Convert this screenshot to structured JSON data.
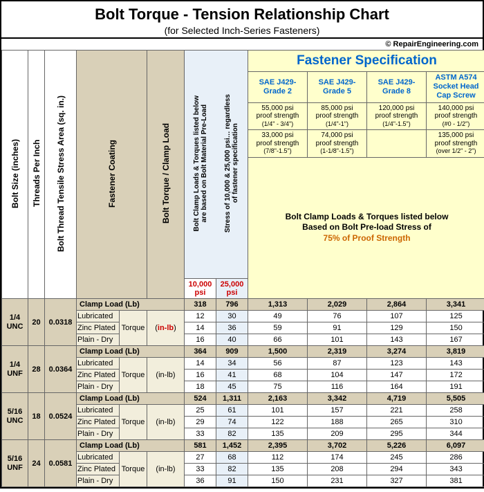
{
  "title": "Bolt Torque - Tension Relationship Chart",
  "subtitle": "(for Selected Inch-Series Fasteners)",
  "credit": "© RepairEngineering.com",
  "headers": {
    "bolt_size": "Bolt Size (inches)",
    "tpi": "Threads Per Inch",
    "area": "Bolt Thread Tensile Stress Area (sq. in.)",
    "coating": "Fastener Coating",
    "torque_clamp": "Bolt Torque / Clamp Load",
    "note_l1": "Bolt Clamp Loads & Torques listed below",
    "note_l2": "are based on Bolt Material Pre-Load",
    "note_l3": "Stress of 10,000 & 25,000 psi… regardless",
    "note_l4": "of fastener specification",
    "psi_10k": "10,000 psi",
    "psi_25k": "25,000 psi"
  },
  "spec": {
    "title": "Fastener Specification",
    "grades": [
      "SAE J429- Grade 2",
      "SAE J429- Grade 5",
      "SAE J429- Grade 8",
      "ASTM A574 Socket Head Cap Screw"
    ],
    "proof_row1": [
      {
        "psi": "55,000 psi",
        "lbl": "proof strength",
        "rng": "(1/4\" - 3/4\")"
      },
      {
        "psi": "85,000 psi",
        "lbl": "proof strength",
        "rng": "(1/4\"-1\")"
      },
      {
        "psi": "120,000 psi",
        "lbl": "proof strength",
        "rng": "(1/4\"-1.5\")"
      },
      {
        "psi": "140,000 psi",
        "lbl": "proof strength",
        "rng": "(#0 - 1/2\")"
      }
    ],
    "proof_row2": [
      {
        "psi": "33,000 psi",
        "lbl": "proof strength",
        "rng": "(7/8\"-1.5\")"
      },
      {
        "psi": "74,000 psi",
        "lbl": "proof strength",
        "rng": "(1-1/8\"-1.5\")"
      },
      null,
      {
        "psi": "135,000 psi",
        "lbl": "proof strength",
        "rng": "(over 1/2\" - 2\")"
      }
    ],
    "preload_l1": "Bolt Clamp Loads & Torques listed below",
    "preload_l2": "Based on Bolt Pre-load Stress of",
    "preload_l3": "75% of Proof Strength"
  },
  "rows": [
    {
      "size": "1/4 UNC",
      "tpi": "20",
      "area": "0.0318",
      "unit": "in-lb",
      "unit_red": true,
      "clamp": [
        "318",
        "796",
        "1,313",
        "2,029",
        "2,864",
        "3,341"
      ],
      "t": [
        {
          "c": "Lubricated",
          "v": [
            "12",
            "30",
            "49",
            "76",
            "107",
            "125"
          ]
        },
        {
          "c": "Zinc Plated",
          "v": [
            "14",
            "36",
            "59",
            "91",
            "129",
            "150"
          ]
        },
        {
          "c": "Plain - Dry",
          "v": [
            "16",
            "40",
            "66",
            "101",
            "143",
            "167"
          ]
        }
      ]
    },
    {
      "size": "1/4 UNF",
      "tpi": "28",
      "area": "0.0364",
      "unit": "in-lb",
      "unit_red": false,
      "clamp": [
        "364",
        "909",
        "1,500",
        "2,319",
        "3,274",
        "3,819"
      ],
      "t": [
        {
          "c": "Lubricated",
          "v": [
            "14",
            "34",
            "56",
            "87",
            "123",
            "143"
          ]
        },
        {
          "c": "Zinc Plated",
          "v": [
            "16",
            "41",
            "68",
            "104",
            "147",
            "172"
          ]
        },
        {
          "c": "Plain - Dry",
          "v": [
            "18",
            "45",
            "75",
            "116",
            "164",
            "191"
          ]
        }
      ]
    },
    {
      "size": "5/16 UNC",
      "tpi": "18",
      "area": "0.0524",
      "unit": "in-lb",
      "unit_red": false,
      "clamp": [
        "524",
        "1,311",
        "2,163",
        "3,342",
        "4,719",
        "5,505"
      ],
      "t": [
        {
          "c": "Lubricated",
          "v": [
            "25",
            "61",
            "101",
            "157",
            "221",
            "258"
          ]
        },
        {
          "c": "Zinc Plated",
          "v": [
            "29",
            "74",
            "122",
            "188",
            "265",
            "310"
          ]
        },
        {
          "c": "Plain - Dry",
          "v": [
            "33",
            "82",
            "135",
            "209",
            "295",
            "344"
          ]
        }
      ]
    },
    {
      "size": "5/16 UNF",
      "tpi": "24",
      "area": "0.0581",
      "unit": "in-lb",
      "unit_red": false,
      "clamp": [
        "581",
        "1,452",
        "2,395",
        "3,702",
        "5,226",
        "6,097"
      ],
      "t": [
        {
          "c": "Lubricated",
          "v": [
            "27",
            "68",
            "112",
            "174",
            "245",
            "286"
          ]
        },
        {
          "c": "Zinc Plated",
          "v": [
            "33",
            "82",
            "135",
            "208",
            "294",
            "343"
          ]
        },
        {
          "c": "Plain - Dry",
          "v": [
            "36",
            "91",
            "150",
            "231",
            "327",
            "381"
          ]
        }
      ]
    }
  ]
}
